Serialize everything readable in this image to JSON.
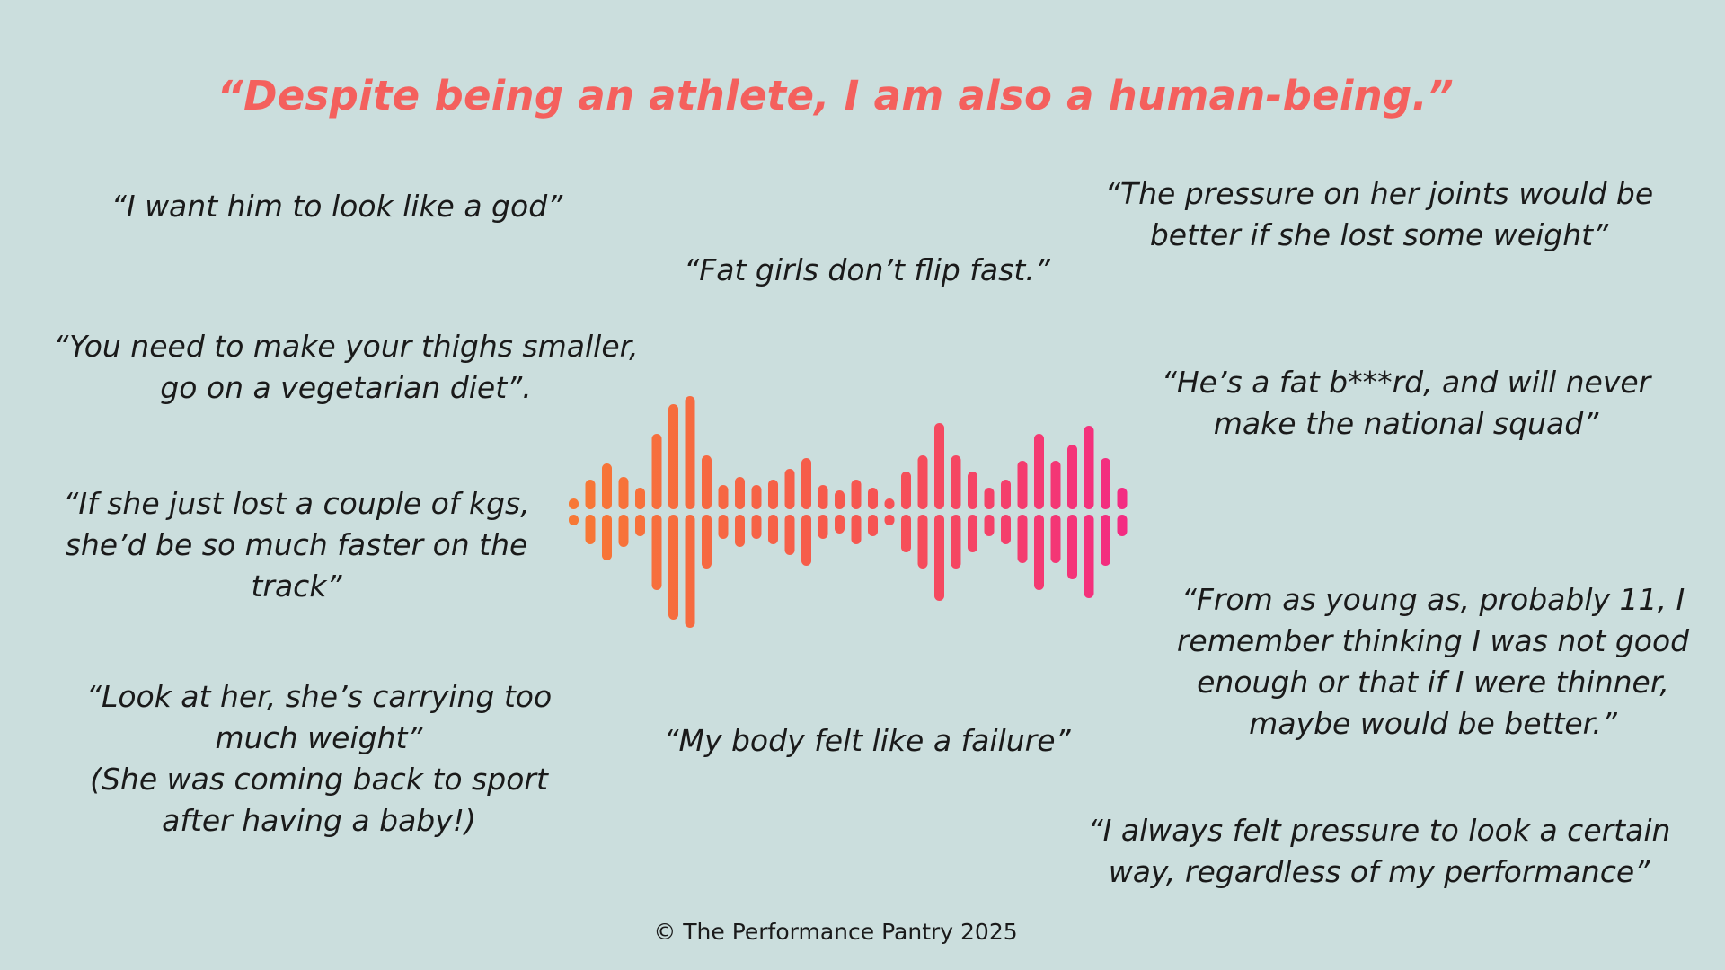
{
  "headline": "“Despite being an athlete, I am also a human-being.”",
  "quotes": {
    "god": [
      "“I want him to look like a god”"
    ],
    "fat_girls": [
      "“Fat girls don’t flip fast.”"
    ],
    "joints": [
      "“The pressure on her joints would be",
      "better if she lost some weight”"
    ],
    "thighs": [
      "“You need to make your thighs smaller,",
      "go on a vegetarian diet”."
    ],
    "fat_b": [
      "“He’s a fat b***rd, and will never",
      "make the national squad”"
    ],
    "kgs": [
      "“If she just lost a couple of kgs,",
      "she’d be so much faster on the",
      "track”"
    ],
    "young": [
      "“From as young as, probably 11, I",
      "remember thinking I was not good",
      "enough or that if I were thinner,",
      "maybe would be better.”"
    ],
    "carrying": [
      "“Look at her, she’s carrying too",
      "much weight”",
      "(She was coming back to sport",
      "after having a baby!)"
    ],
    "failure": [
      "“My body felt like a failure”"
    ],
    "always": [
      "“I always felt pressure to look a certain",
      "way, regardless of my performance”"
    ]
  },
  "footer": "© The Performance Pantry 2025",
  "colors": {
    "background": "#cbdedd",
    "headline": "#f4605d",
    "wave_start": "#f77a34",
    "wave_mid": "#f6584e",
    "wave_end": "#f32a84"
  },
  "waveform": {
    "icon": "sound-wave-icon",
    "levels": [
      0.2,
      0.55,
      0.85,
      0.6,
      0.4,
      1.4,
      1.95,
      2.1,
      1.0,
      0.45,
      0.6,
      0.45,
      0.55,
      0.75,
      0.95,
      0.45,
      0.35,
      0.55,
      0.4,
      0.2,
      0.7,
      1.0,
      1.6,
      1.0,
      0.7,
      0.4,
      0.55,
      0.9,
      1.4,
      0.9,
      1.2,
      1.55,
      0.95,
      0.4
    ]
  }
}
